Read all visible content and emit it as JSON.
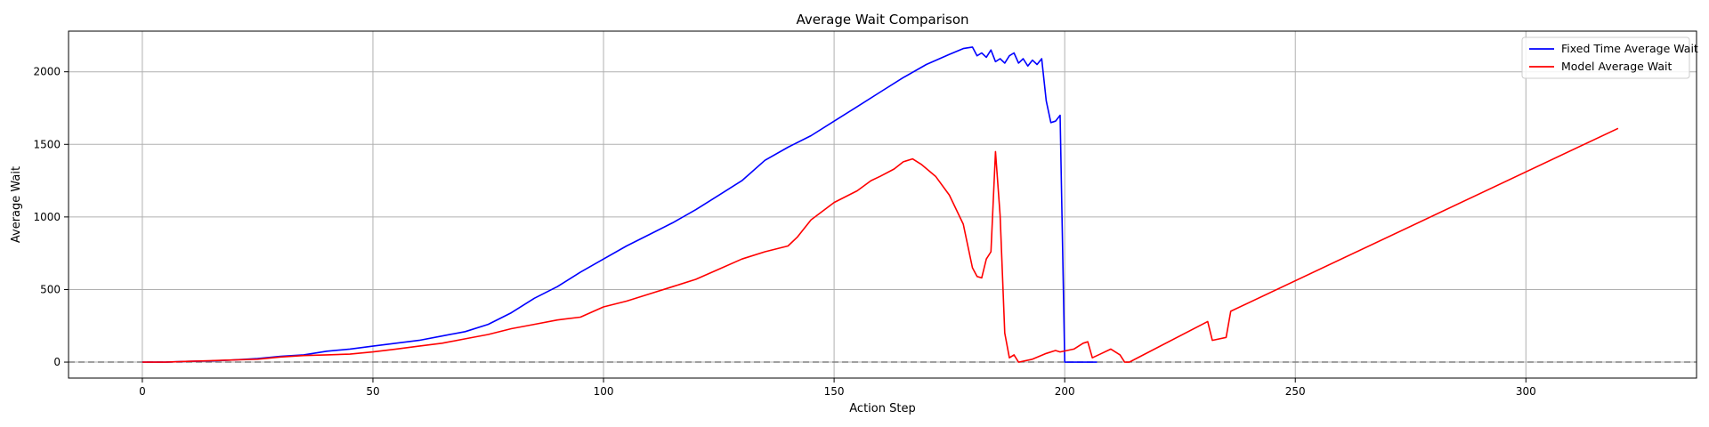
{
  "chart_data": {
    "type": "line",
    "title": "Average Wait Comparison",
    "xlabel": "Action Step",
    "ylabel": "Average Wait",
    "xlim": [
      -16,
      337
    ],
    "ylim": [
      -110,
      2280
    ],
    "xticks": [
      0,
      50,
      100,
      150,
      200,
      250,
      300
    ],
    "yticks": [
      0,
      500,
      1000,
      1500,
      2000
    ],
    "grid": true,
    "legend_position": "top-right",
    "reference_line": {
      "y": 0,
      "style": "dashed",
      "color": "#808080"
    },
    "series": [
      {
        "name": "Fixed Time Average Wait",
        "color": "#0000ff",
        "points": [
          [
            0,
            0
          ],
          [
            5,
            0
          ],
          [
            10,
            5
          ],
          [
            15,
            8
          ],
          [
            20,
            15
          ],
          [
            25,
            25
          ],
          [
            30,
            40
          ],
          [
            35,
            50
          ],
          [
            40,
            75
          ],
          [
            45,
            90
          ],
          [
            50,
            110
          ],
          [
            55,
            130
          ],
          [
            60,
            150
          ],
          [
            65,
            180
          ],
          [
            70,
            210
          ],
          [
            75,
            260
          ],
          [
            80,
            340
          ],
          [
            85,
            440
          ],
          [
            90,
            520
          ],
          [
            95,
            620
          ],
          [
            100,
            710
          ],
          [
            105,
            800
          ],
          [
            110,
            880
          ],
          [
            115,
            960
          ],
          [
            120,
            1050
          ],
          [
            125,
            1150
          ],
          [
            130,
            1250
          ],
          [
            135,
            1390
          ],
          [
            140,
            1480
          ],
          [
            145,
            1560
          ],
          [
            150,
            1660
          ],
          [
            155,
            1760
          ],
          [
            160,
            1860
          ],
          [
            165,
            1960
          ],
          [
            170,
            2050
          ],
          [
            175,
            2120
          ],
          [
            178,
            2160
          ],
          [
            180,
            2170
          ],
          [
            181,
            2110
          ],
          [
            182,
            2130
          ],
          [
            183,
            2100
          ],
          [
            184,
            2150
          ],
          [
            185,
            2070
          ],
          [
            186,
            2090
          ],
          [
            187,
            2060
          ],
          [
            188,
            2110
          ],
          [
            189,
            2130
          ],
          [
            190,
            2060
          ],
          [
            191,
            2090
          ],
          [
            192,
            2040
          ],
          [
            193,
            2080
          ],
          [
            194,
            2050
          ],
          [
            195,
            2090
          ],
          [
            196,
            1800
          ],
          [
            197,
            1650
          ],
          [
            198,
            1660
          ],
          [
            199,
            1700
          ],
          [
            200,
            0
          ],
          [
            207,
            0
          ]
        ]
      },
      {
        "name": "Model Average Wait",
        "color": "#ff0000",
        "points": [
          [
            0,
            0
          ],
          [
            5,
            0
          ],
          [
            10,
            5
          ],
          [
            15,
            10
          ],
          [
            20,
            15
          ],
          [
            25,
            20
          ],
          [
            30,
            35
          ],
          [
            35,
            45
          ],
          [
            40,
            50
          ],
          [
            45,
            55
          ],
          [
            50,
            70
          ],
          [
            55,
            90
          ],
          [
            60,
            110
          ],
          [
            65,
            130
          ],
          [
            70,
            160
          ],
          [
            75,
            190
          ],
          [
            80,
            230
          ],
          [
            85,
            260
          ],
          [
            90,
            290
          ],
          [
            95,
            310
          ],
          [
            100,
            380
          ],
          [
            105,
            420
          ],
          [
            110,
            470
          ],
          [
            115,
            520
          ],
          [
            120,
            570
          ],
          [
            125,
            640
          ],
          [
            130,
            710
          ],
          [
            135,
            760
          ],
          [
            140,
            800
          ],
          [
            142,
            860
          ],
          [
            145,
            980
          ],
          [
            150,
            1100
          ],
          [
            155,
            1180
          ],
          [
            158,
            1250
          ],
          [
            160,
            1280
          ],
          [
            163,
            1330
          ],
          [
            165,
            1380
          ],
          [
            167,
            1400
          ],
          [
            169,
            1360
          ],
          [
            172,
            1280
          ],
          [
            175,
            1150
          ],
          [
            178,
            950
          ],
          [
            180,
            650
          ],
          [
            181,
            590
          ],
          [
            182,
            580
          ],
          [
            183,
            710
          ],
          [
            184,
            760
          ],
          [
            185,
            1450
          ],
          [
            186,
            1010
          ],
          [
            187,
            200
          ],
          [
            188,
            30
          ],
          [
            189,
            50
          ],
          [
            190,
            0
          ],
          [
            193,
            20
          ],
          [
            196,
            60
          ],
          [
            198,
            80
          ],
          [
            199,
            70
          ],
          [
            202,
            90
          ],
          [
            204,
            130
          ],
          [
            205,
            140
          ],
          [
            206,
            30
          ],
          [
            208,
            60
          ],
          [
            210,
            90
          ],
          [
            212,
            50
          ],
          [
            213,
            0
          ],
          [
            214,
            0
          ],
          [
            231,
            280
          ],
          [
            232,
            150
          ],
          [
            235,
            170
          ],
          [
            236,
            350
          ],
          [
            320,
            1610
          ]
        ]
      }
    ]
  }
}
